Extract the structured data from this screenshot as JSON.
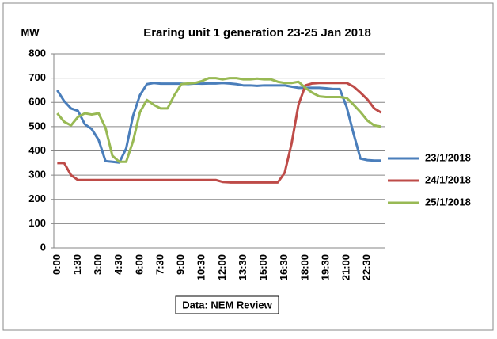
{
  "chart_data": {
    "type": "line",
    "title": "Eraring unit 1  generation 23-25 Jan 2018",
    "ylabel": "MW",
    "annotation": "Data: NEM Review",
    "categories": [
      "0:00",
      null,
      null,
      "1:30",
      null,
      null,
      "3:00",
      null,
      null,
      "4:30",
      null,
      null,
      "6:00",
      null,
      null,
      "7:30",
      null,
      null,
      "9:00",
      null,
      null,
      "10:30",
      null,
      null,
      "12:00",
      null,
      null,
      "13:30",
      null,
      null,
      "15:00",
      null,
      null,
      "16:30",
      null,
      null,
      "18:00",
      null,
      null,
      "19:30",
      null,
      null,
      "21:00",
      null,
      null,
      "22:30",
      null,
      null
    ],
    "series": [
      {
        "name": "23/1/2018",
        "color": "#4a7ebb",
        "values": [
          650,
          605,
          575,
          565,
          510,
          490,
          445,
          358,
          355,
          352,
          410,
          545,
          630,
          675,
          680,
          677,
          677,
          677,
          677,
          676,
          678,
          677,
          678,
          678,
          680,
          678,
          675,
          670,
          670,
          668,
          670,
          670,
          670,
          670,
          665,
          660,
          660,
          660,
          660,
          658,
          655,
          655,
          580,
          470,
          368,
          362,
          360,
          360
        ]
      },
      {
        "name": "24/1/2018",
        "color": "#be4b48",
        "values": [
          350,
          350,
          300,
          280,
          280,
          280,
          280,
          280,
          280,
          280,
          280,
          280,
          280,
          280,
          280,
          280,
          280,
          280,
          280,
          280,
          280,
          280,
          280,
          280,
          272,
          270,
          270,
          270,
          270,
          270,
          270,
          270,
          270,
          310,
          430,
          590,
          670,
          678,
          680,
          680,
          680,
          680,
          680,
          665,
          640,
          612,
          575,
          558
        ]
      },
      {
        "name": "25/1/2018",
        "color": "#98b954",
        "values": [
          555,
          520,
          505,
          540,
          555,
          550,
          555,
          495,
          380,
          355,
          355,
          440,
          560,
          610,
          590,
          575,
          575,
          630,
          675,
          678,
          680,
          688,
          700,
          700,
          695,
          700,
          700,
          695,
          695,
          698,
          695,
          695,
          685,
          680,
          680,
          685,
          660,
          640,
          625,
          622,
          622,
          622,
          618,
          590,
          560,
          525,
          505,
          500
        ]
      }
    ],
    "ylim": [
      0,
      800
    ],
    "yticks": [
      0,
      100,
      200,
      300,
      400,
      500,
      600,
      700,
      800
    ],
    "grid": true,
    "legend": "right"
  }
}
